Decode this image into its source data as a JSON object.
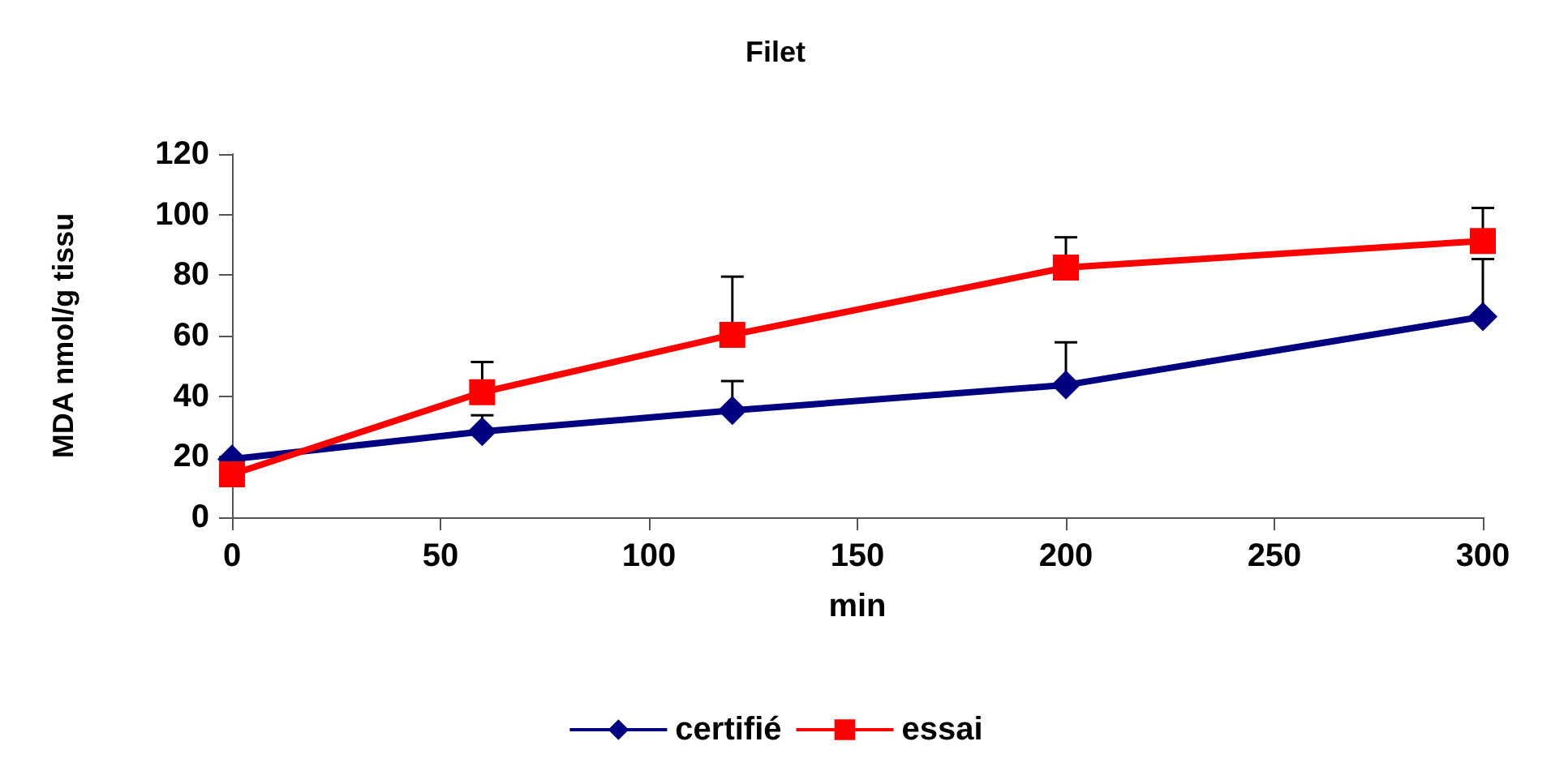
{
  "chart_data": {
    "type": "line",
    "title": "Filet",
    "xlabel": "min",
    "ylabel": "MDA nmol/g tissu",
    "x": [
      0,
      60,
      120,
      200,
      300
    ],
    "series": [
      {
        "name": "certifié",
        "color": "#000080",
        "marker": "diamond",
        "values": [
          19.2,
          28.3,
          35.3,
          43.7,
          66.3
        ],
        "errors": [
          null,
          [
            28.3,
            33.7
          ],
          [
            35.3,
            45
          ],
          [
            43.7,
            57.8
          ],
          [
            66.3,
            85.3
          ]
        ]
      },
      {
        "name": "essai",
        "color": "#ff0000",
        "marker": "square",
        "values": [
          14.2,
          41.3,
          60.3,
          82.5,
          91.3
        ],
        "errors": [
          null,
          [
            41.3,
            51.3
          ],
          [
            60.3,
            79.5
          ],
          [
            82.5,
            92.5
          ],
          [
            91.3,
            102.2
          ]
        ]
      }
    ],
    "xlim": [
      0,
      300
    ],
    "xticks": [
      0,
      50,
      100,
      150,
      200,
      250,
      300
    ],
    "ylim": [
      0,
      120
    ],
    "yticks": [
      0,
      20,
      40,
      60,
      80,
      100,
      120
    ],
    "grid": false,
    "legend": "bottom"
  }
}
